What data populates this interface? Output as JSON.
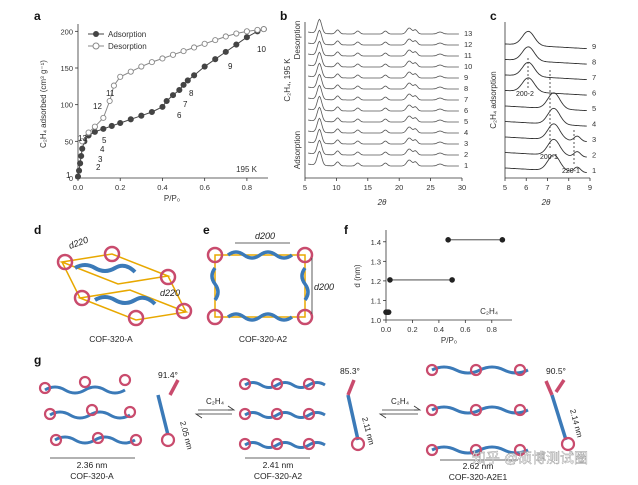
{
  "panels": {
    "a": {
      "label": "a",
      "legend": [
        "Adsorption",
        "Desorption"
      ],
      "ylabel": "C₂H₄ adsorbed (cm³ g⁻¹)",
      "xlabel": "P/P₀",
      "temp": "195 K",
      "point_labels": [
        "1",
        "2",
        "3",
        "4",
        "5",
        "6",
        "7",
        "8",
        "9",
        "10",
        "11",
        "12",
        "13"
      ]
    },
    "b": {
      "label": "b",
      "ylabel_top": "C₂H₄, 195 K",
      "ylabel_top2": "Desorption",
      "ylabel_bottom": "Adsorption",
      "xlabel": "2θ",
      "trace_labels": [
        "13",
        "12",
        "11",
        "10",
        "9",
        "8",
        "7",
        "6",
        "5",
        "4",
        "3",
        "2",
        "1"
      ]
    },
    "c": {
      "label": "c",
      "ylabel": "C₂H₄ adsorption",
      "xlabel": "2θ",
      "trace_labels": [
        "9",
        "8",
        "7",
        "6",
        "5",
        "4",
        "3",
        "2",
        "1"
      ],
      "peak_labels": [
        "200-2",
        "200-1",
        "220-1"
      ]
    },
    "d": {
      "label": "d",
      "dim1": "d220",
      "dim2": "d220",
      "caption": "COF-320-A"
    },
    "e": {
      "label": "e",
      "dim1": "d200",
      "dim2": "d200",
      "caption": "COF-320-A2"
    },
    "f": {
      "label": "f",
      "ylabel": "d (nm)",
      "xlabel": "P/P₀",
      "gas": "C₂H₄"
    },
    "g": {
      "label": "g",
      "structures": [
        {
          "caption": "COF-320-A",
          "width": "2.36 nm",
          "angle": "91.4°",
          "length": "2.05 nm"
        },
        {
          "caption": "COF-320-A2",
          "width": "2.41 nm",
          "angle": "85.3°",
          "length": "2.11 nm"
        },
        {
          "caption": "COF-320-A2E1",
          "width": "2.62 nm",
          "angle": "90.5°",
          "length": "2.14 nm"
        }
      ],
      "arrows": [
        "C₂H₄",
        "C₂H₄"
      ]
    }
  },
  "watermark": "知乎 @硕博测试圈",
  "chart_data": [
    {
      "type": "line",
      "title": "",
      "xlabel": "P/P₀",
      "ylabel": "C₂H₄ adsorbed (cm³ g⁻¹)",
      "xlim": [
        0,
        0.9
      ],
      "ylim": [
        0,
        210
      ],
      "xticks": [
        0,
        0.2,
        0.4,
        0.6,
        0.8
      ],
      "yticks": [
        0,
        50,
        100,
        150,
        200
      ],
      "series": [
        {
          "name": "Adsorption",
          "x": [
            0.0,
            0.005,
            0.01,
            0.015,
            0.02,
            0.03,
            0.05,
            0.08,
            0.12,
            0.16,
            0.2,
            0.25,
            0.3,
            0.35,
            0.4,
            0.42,
            0.45,
            0.48,
            0.5,
            0.52,
            0.55,
            0.6,
            0.65,
            0.7,
            0.75,
            0.8,
            0.85,
            0.88
          ],
          "y": [
            2,
            10,
            20,
            30,
            40,
            50,
            58,
            63,
            67,
            71,
            75,
            80,
            85,
            90,
            97,
            105,
            113,
            120,
            127,
            133,
            140,
            152,
            162,
            172,
            182,
            192,
            200,
            203
          ]
        },
        {
          "name": "Desorption",
          "x": [
            0.88,
            0.85,
            0.8,
            0.75,
            0.7,
            0.65,
            0.6,
            0.55,
            0.5,
            0.45,
            0.4,
            0.35,
            0.3,
            0.25,
            0.2,
            0.17,
            0.15,
            0.12,
            0.08,
            0.05,
            0.02
          ],
          "y": [
            203,
            202,
            200,
            197,
            193,
            188,
            183,
            178,
            173,
            168,
            163,
            158,
            152,
            145,
            138,
            126,
            105,
            82,
            70,
            62,
            50
          ]
        }
      ]
    },
    {
      "type": "scatter",
      "title": "",
      "xlabel": "P/P₀",
      "ylabel": "d (nm)",
      "xlim": [
        0,
        0.9
      ],
      "ylim": [
        1.0,
        1.45
      ],
      "xticks": [
        0,
        0.2,
        0.4,
        0.6,
        0.8
      ],
      "yticks": [
        1.0,
        1.1,
        1.2,
        1.3,
        1.4
      ],
      "series": [
        {
          "name": "C₂H₄",
          "x": [
            0.0,
            0.01,
            0.02,
            0.03,
            0.5,
            0.47,
            0.88
          ],
          "y": [
            1.04,
            1.04,
            1.04,
            1.205,
            1.205,
            1.41,
            1.41
          ]
        }
      ]
    }
  ]
}
